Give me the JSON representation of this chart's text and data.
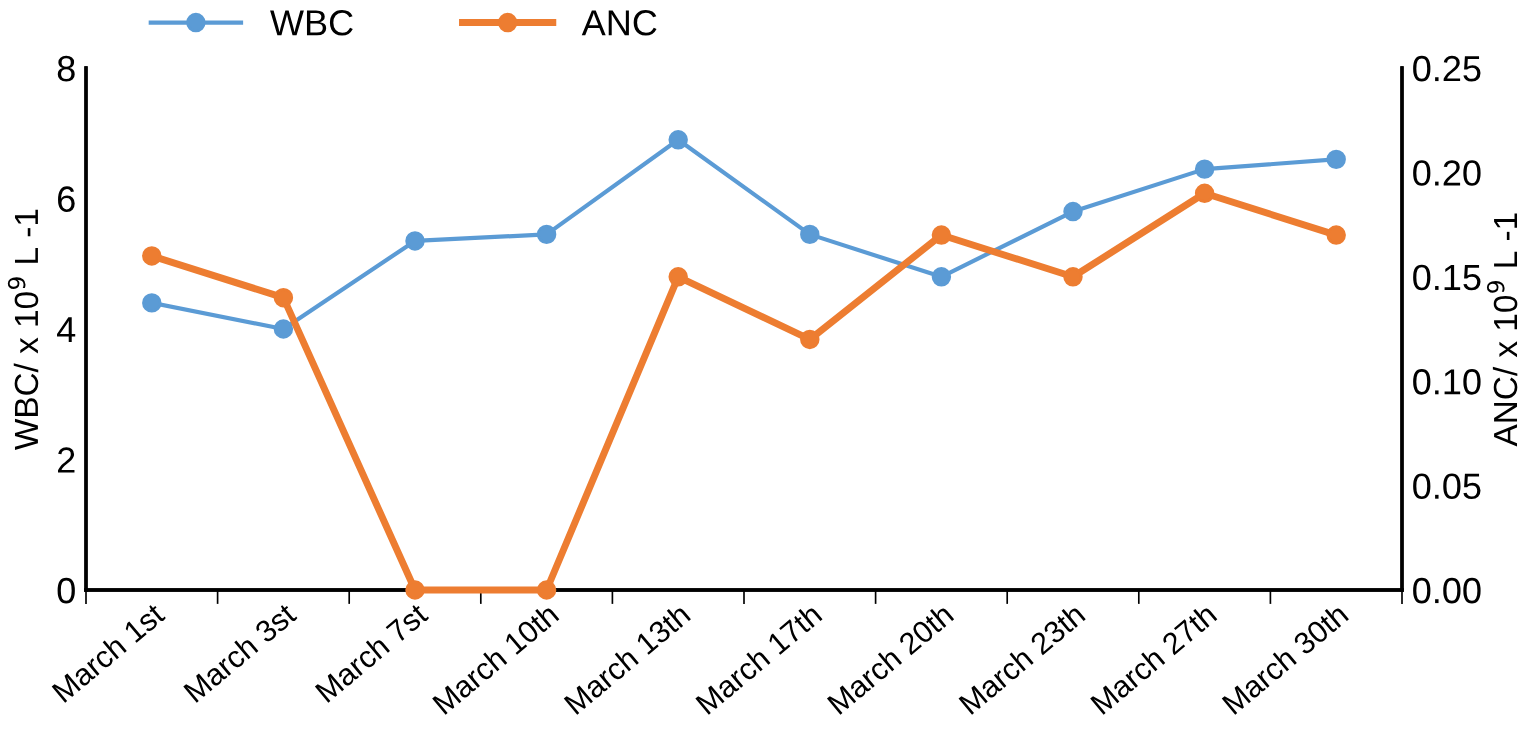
{
  "chart_data": {
    "type": "line",
    "categories": [
      "March 1st",
      "March 3st",
      "March 7st",
      "March 10th",
      "March 13th",
      "March 17th",
      "March 20th",
      "March 23th",
      "March 27th",
      "March 30th"
    ],
    "series": [
      {
        "name": "WBC",
        "color": "#5b9bd5",
        "values": [
          4.4,
          4.0,
          5.35,
          5.45,
          6.9,
          5.45,
          4.8,
          5.8,
          6.45,
          6.6
        ]
      },
      {
        "name": "ANC",
        "color": "#ed7d31",
        "axis": "y2",
        "values": [
          0.16,
          0.14,
          0.0,
          0.0,
          0.15,
          0.12,
          0.17,
          0.15,
          0.19,
          0.17
        ]
      }
    ],
    "ylabel": "WBC/ x 10$^{9}$ L -1",
    "y2label": "ANC/ x 10$^{9}$ L -1",
    "ylim": [
      0,
      8
    ],
    "yticks": [
      0,
      2,
      4,
      6,
      8
    ],
    "y2lim": [
      0,
      0.25
    ],
    "y2ticks": [
      {
        "value": 0,
        "label": "0.00"
      },
      {
        "value": 0.05,
        "label": "0.05"
      },
      {
        "value": 0.1,
        "label": "0.10"
      },
      {
        "value": 0.15,
        "label": "0.15"
      },
      {
        "value": 0.2,
        "label": "0.20"
      },
      {
        "value": 0.25,
        "label": "0.25"
      }
    ],
    "grid": false,
    "legend": "top left",
    "marker": "circle",
    "line_style": "solid"
  }
}
